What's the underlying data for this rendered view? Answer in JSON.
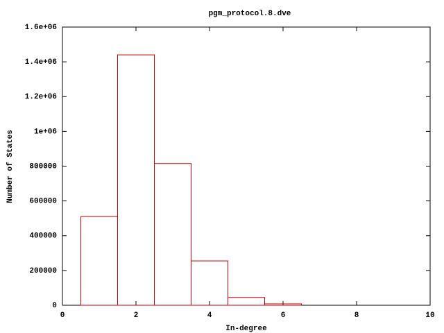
{
  "chart_data": {
    "type": "histogram",
    "title": "pgm_protocol.8.dve",
    "xlabel": "In-degree",
    "ylabel": "Number of States",
    "bins": [
      0.5,
      1.5,
      2.5,
      3.5,
      4.5,
      5.5,
      6.5
    ],
    "values": [
      510000,
      1440000,
      815000,
      255000,
      45000,
      8000
    ],
    "color": "#cc0000",
    "xlim": [
      0,
      10
    ],
    "xticks": [
      0,
      2,
      4,
      6,
      8,
      10
    ],
    "ylim": [
      0,
      1600000
    ],
    "yticks": [
      0,
      200000,
      400000,
      600000,
      800000,
      {
        "value": 1000000,
        "label": "1e+06"
      },
      {
        "value": 1200000,
        "label": "1.2e+06"
      },
      {
        "value": 1400000,
        "label": "1.4e+06"
      },
      {
        "value": 1600000,
        "label": "1.6e+06"
      }
    ]
  }
}
